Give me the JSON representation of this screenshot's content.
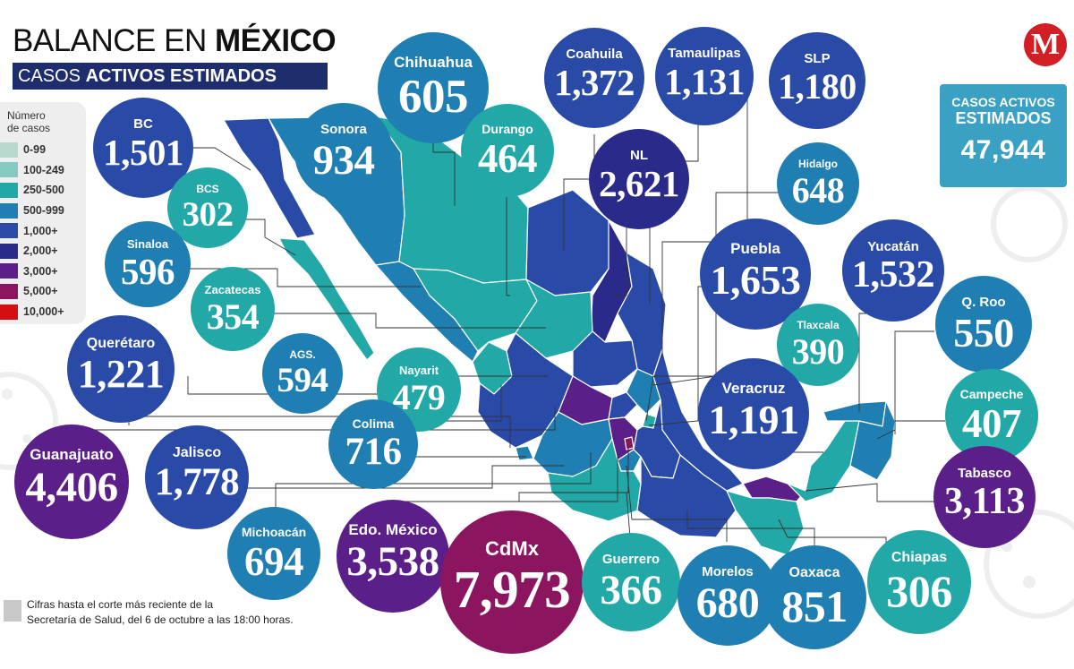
{
  "header": {
    "title_light": "BALANCE EN ",
    "title_bold": "MÉXICO",
    "subtitle_light": "CASOS ",
    "subtitle_bold": "ACTIVOS ESTIMADOS"
  },
  "logo": {
    "letter": "M",
    "color": "#d21f26"
  },
  "total": {
    "line1": "CASOS ACTIVOS",
    "line2": "ESTIMADOS",
    "value": "47,944"
  },
  "legend": {
    "title_line1": "Número",
    "title_line2": "de casos",
    "items": [
      {
        "label": "0-99",
        "color": "#b9d9cf"
      },
      {
        "label": "100-249",
        "color": "#83cbc1"
      },
      {
        "label": "250-500",
        "color": "#23a8a8"
      },
      {
        "label": "500-999",
        "color": "#1f7fb3"
      },
      {
        "label": "1,000+",
        "color": "#2a4aa8"
      },
      {
        "label": "2,000+",
        "color": "#2a2a8a"
      },
      {
        "label": "3,000+",
        "color": "#5b1f8a"
      },
      {
        "label": "5,000+",
        "color": "#8c1560"
      },
      {
        "label": "10,000+",
        "color": "#d40e12"
      }
    ]
  },
  "footer": {
    "line1": "Cifras hasta el corte más reciente de la",
    "line2": "Secretaría de Salud, del 6 de octubre a las 18:00 horas."
  },
  "states": [
    {
      "name": "BC",
      "value": "1,501",
      "color": "#2a4aa8"
    },
    {
      "name": "Sonora",
      "value": "934",
      "color": "#1f7fb3"
    },
    {
      "name": "Chihuahua",
      "value": "605",
      "color": "#1f7fb3"
    },
    {
      "name": "Coahuila",
      "value": "1,372",
      "color": "#2a4aa8"
    },
    {
      "name": "Tamaulipas",
      "value": "1,131",
      "color": "#2a4aa8"
    },
    {
      "name": "SLP",
      "value": "1,180",
      "color": "#2a4aa8"
    },
    {
      "name": "BCS",
      "value": "302",
      "color": "#23a8a8"
    },
    {
      "name": "Durango",
      "value": "464",
      "color": "#23a8a8"
    },
    {
      "name": "NL",
      "value": "2,621",
      "color": "#2a2a8a"
    },
    {
      "name": "Hidalgo",
      "value": "648",
      "color": "#1f7fb3"
    },
    {
      "name": "Sinaloa",
      "value": "596",
      "color": "#1f7fb3"
    },
    {
      "name": "Zacatecas",
      "value": "354",
      "color": "#23a8a8"
    },
    {
      "name": "Puebla",
      "value": "1,653",
      "color": "#2a4aa8"
    },
    {
      "name": "Yucatán",
      "value": "1,532",
      "color": "#2a4aa8"
    },
    {
      "name": "Tlaxcala",
      "value": "390",
      "color": "#23a8a8"
    },
    {
      "name": "Q. Roo",
      "value": "550",
      "color": "#1f7fb3"
    },
    {
      "name": "Querétaro",
      "value": "1,221",
      "color": "#2a4aa8"
    },
    {
      "name": "AGS.",
      "value": "594",
      "color": "#1f7fb3"
    },
    {
      "name": "Nayarit",
      "value": "479",
      "color": "#23a8a8"
    },
    {
      "name": "Veracruz",
      "value": "1,191",
      "color": "#2a4aa8"
    },
    {
      "name": "Campeche",
      "value": "407",
      "color": "#23a8a8"
    },
    {
      "name": "Colima",
      "value": "716",
      "color": "#1f7fb3"
    },
    {
      "name": "Guanajuato",
      "value": "4,406",
      "color": "#5b1f8a"
    },
    {
      "name": "Jalisco",
      "value": "1,778",
      "color": "#2a4aa8"
    },
    {
      "name": "Tabasco",
      "value": "3,113",
      "color": "#5b1f8a"
    },
    {
      "name": "Michoacán",
      "value": "694",
      "color": "#1f7fb3"
    },
    {
      "name": "Edo. México",
      "value": "3,538",
      "color": "#5b1f8a"
    },
    {
      "name": "CdMx",
      "value": "7,973",
      "color": "#8c1560"
    },
    {
      "name": "Guerrero",
      "value": "366",
      "color": "#23a8a8"
    },
    {
      "name": "Morelos",
      "value": "680",
      "color": "#1f7fb3"
    },
    {
      "name": "Oaxaca",
      "value": "851",
      "color": "#1f7fb3"
    },
    {
      "name": "Chiapas",
      "value": "306",
      "color": "#23a8a8"
    }
  ]
}
